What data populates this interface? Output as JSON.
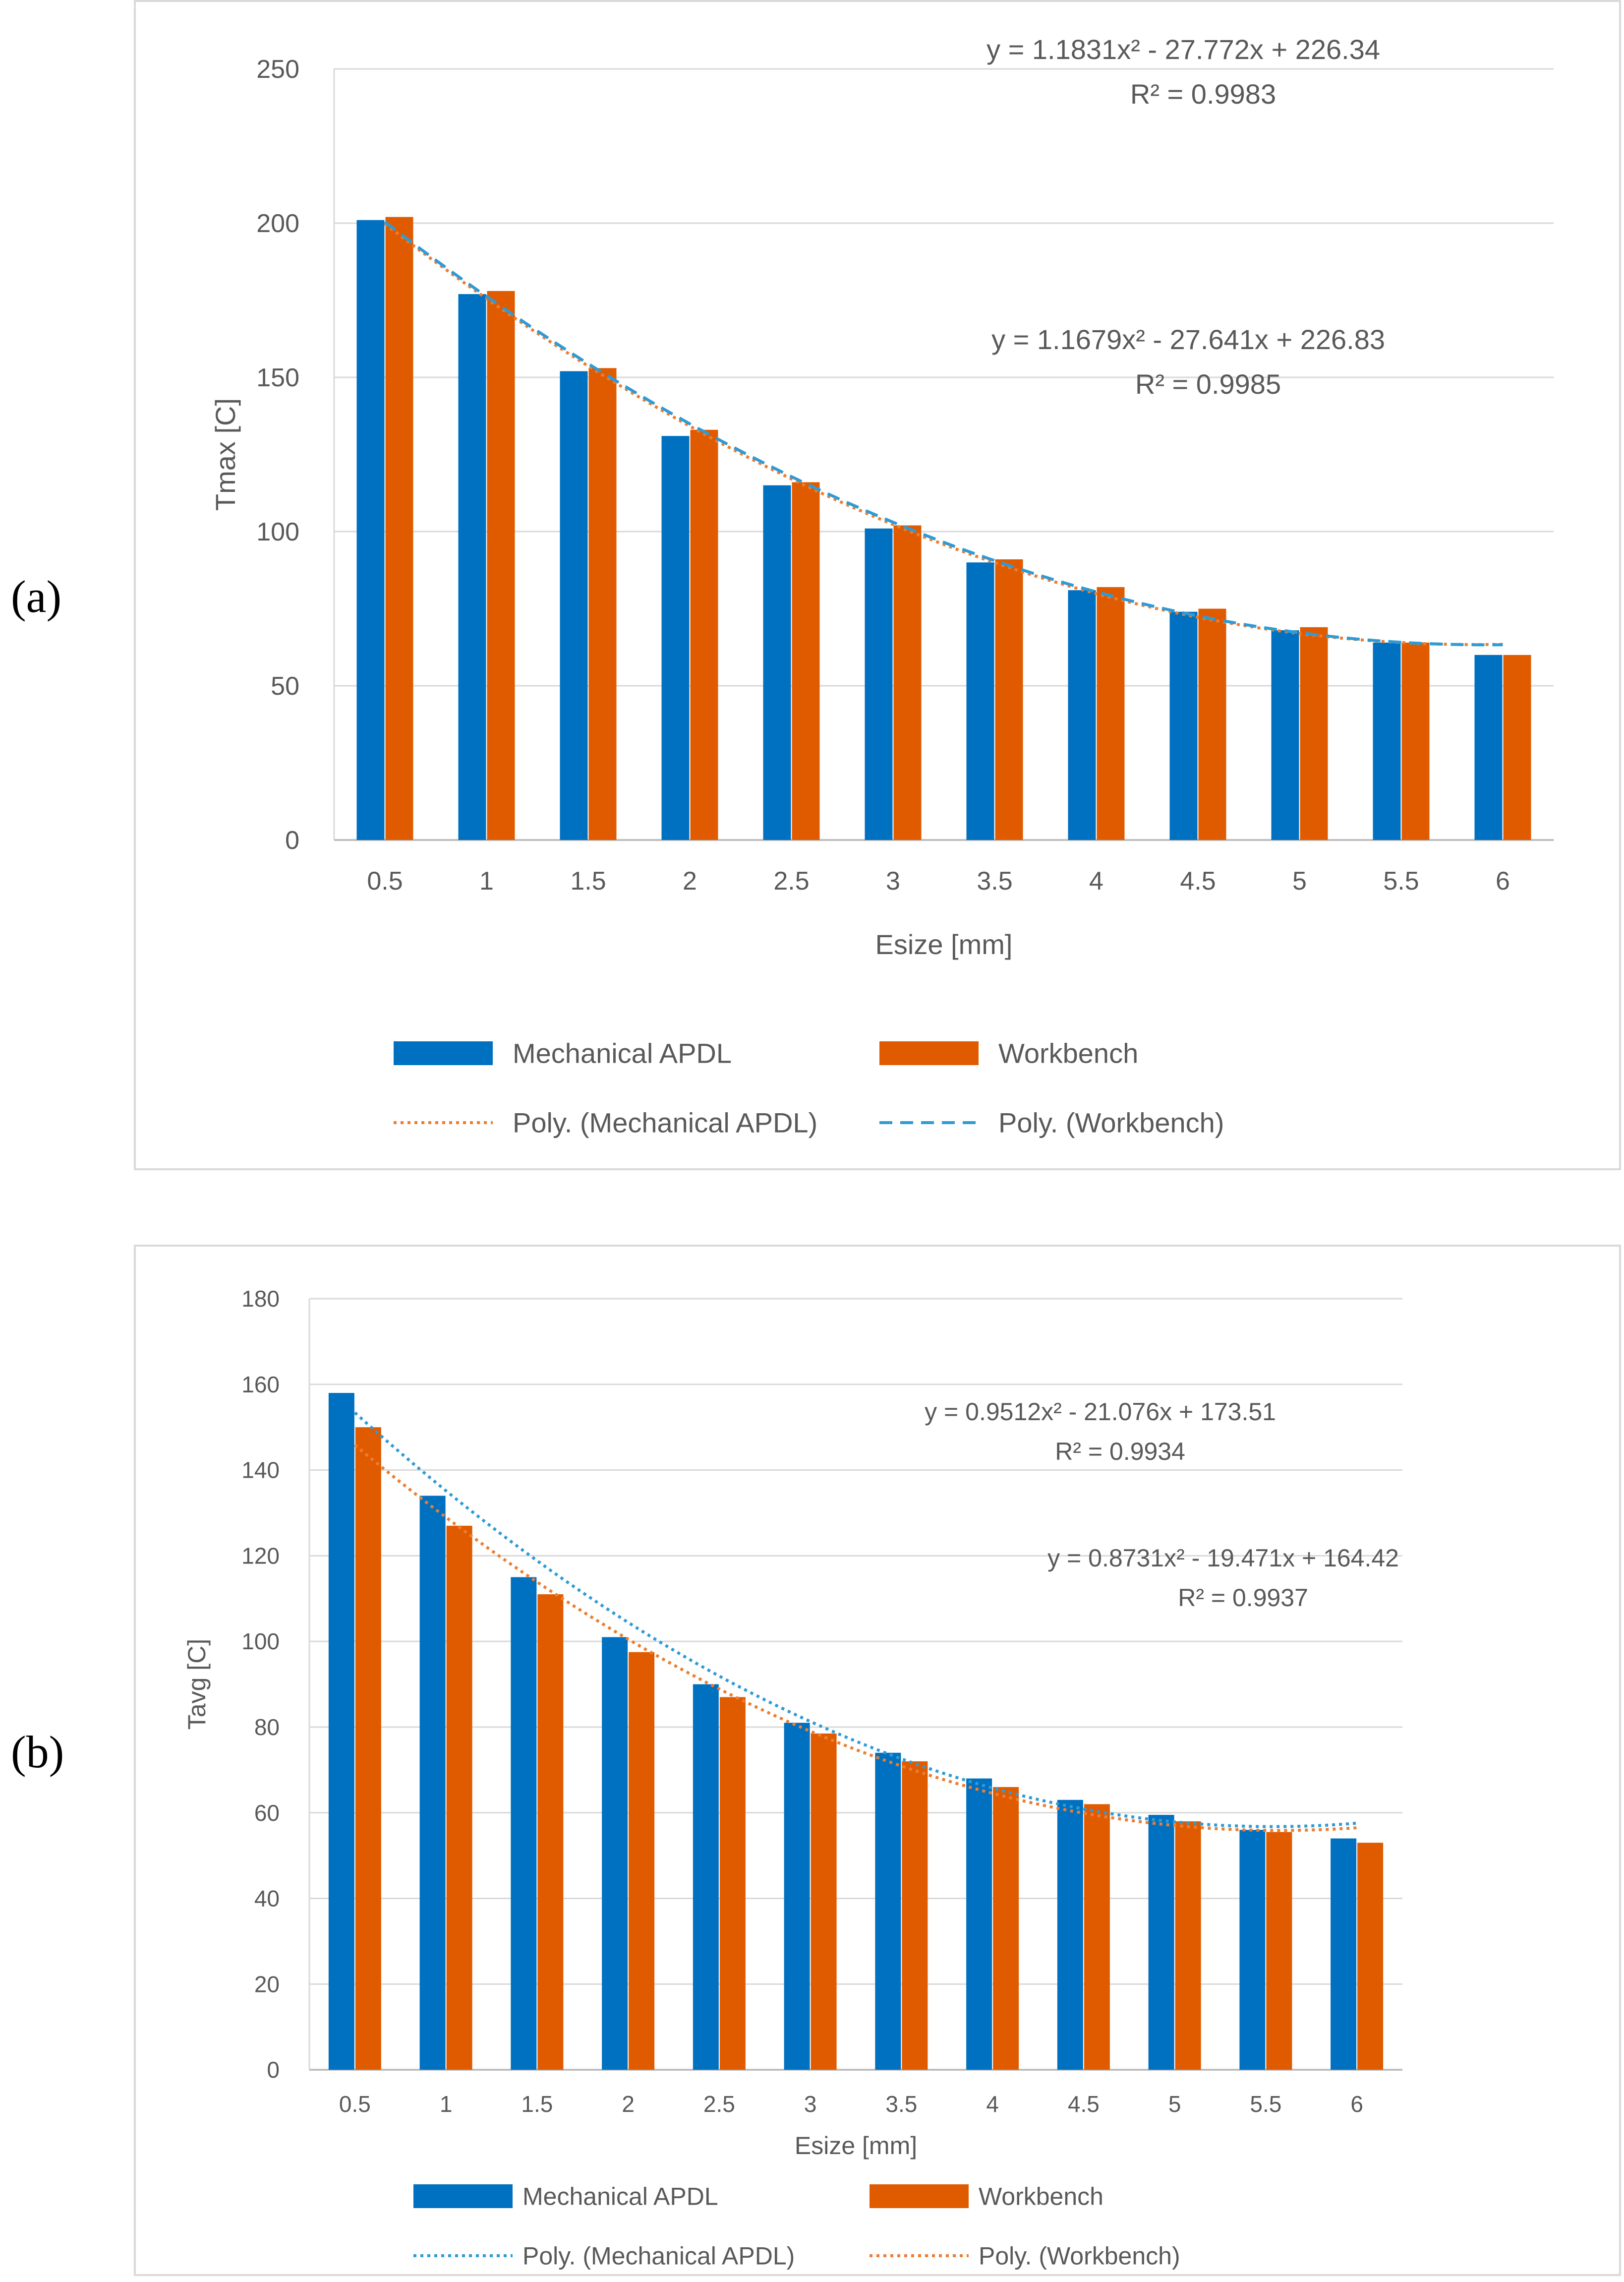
{
  "panels": [
    {
      "label": "(a)"
    },
    {
      "label": "(b)"
    }
  ],
  "colors": {
    "mechanical_apdl": "#0070c0",
    "workbench": "#e05b00",
    "grid": "#d9d9d9",
    "axis_text": "#595959"
  },
  "chart_data": [
    {
      "type": "bar",
      "categories": [
        "0.5",
        "1",
        "1.5",
        "2",
        "2.5",
        "3",
        "3.5",
        "4",
        "4.5",
        "5",
        "5.5",
        "6"
      ],
      "series": [
        {
          "name": "Mechanical APDL",
          "values": [
            201,
            177,
            152,
            131,
            115,
            101,
            90,
            81,
            74,
            68,
            64,
            60
          ]
        },
        {
          "name": "Workbench",
          "values": [
            202,
            178,
            153,
            133,
            116,
            102,
            91,
            82,
            75,
            69,
            64,
            60
          ]
        }
      ],
      "trendlines": [
        {
          "name": "Poly. (Mechanical APDL)",
          "coeffs": [
            226.34,
            -27.772,
            1.1831
          ],
          "color": "#ed7d31",
          "style": "dotted"
        },
        {
          "name": "Poly. (Workbench)",
          "coeffs": [
            226.83,
            -27.641,
            1.1679
          ],
          "color": "#2e9bd6",
          "style": "dashed"
        }
      ],
      "equations": [
        {
          "eq": "y = 1.1831x² - 27.772x + 226.34",
          "r2": "R² = 0.9983"
        },
        {
          "eq": "y = 1.1679x² - 27.641x + 226.83",
          "r2": "R² = 0.9985"
        }
      ],
      "xlabel": "Esize [mm]",
      "ylabel": "Tmax [C]",
      "ylim": [
        0,
        250
      ],
      "yticks": [
        "0",
        "50",
        "100",
        "150",
        "200",
        "250"
      ],
      "grid": true,
      "legend": {
        "bars": [
          "Mechanical APDL",
          "Workbench"
        ],
        "lines": [
          "Poly. (Mechanical APDL)",
          "Poly. (Workbench)"
        ],
        "position": "bottom"
      }
    },
    {
      "type": "bar",
      "categories": [
        "0.5",
        "1",
        "1.5",
        "2",
        "2.5",
        "3",
        "3.5",
        "4",
        "4.5",
        "5",
        "5.5",
        "6"
      ],
      "series": [
        {
          "name": "Mechanical APDL",
          "values": [
            158,
            134,
            115,
            101,
            90,
            81,
            74,
            68,
            63,
            59.5,
            56,
            54
          ]
        },
        {
          "name": "Workbench",
          "values": [
            150,
            127,
            111,
            97.5,
            87,
            78.5,
            72,
            66,
            62,
            58,
            55.5,
            53
          ]
        }
      ],
      "trendlines": [
        {
          "name": "Poly. (Mechanical APDL)",
          "coeffs": [
            173.51,
            -21.076,
            0.9512
          ],
          "color": "#2e9bd6",
          "style": "dotted"
        },
        {
          "name": "Poly. (Workbench)",
          "coeffs": [
            164.42,
            -19.471,
            0.8731
          ],
          "color": "#ed7d31",
          "style": "dotted"
        }
      ],
      "equations": [
        {
          "eq": "y = 0.9512x² - 21.076x + 173.51",
          "r2": "R² = 0.9934"
        },
        {
          "eq": "y = 0.8731x² - 19.471x + 164.42",
          "r2": "R² = 0.9937"
        }
      ],
      "xlabel": "Esize [mm]",
      "ylabel": "Tavg [C]",
      "ylim": [
        0,
        180
      ],
      "yticks": [
        "0",
        "20",
        "40",
        "60",
        "80",
        "100",
        "120",
        "140",
        "160",
        "180"
      ],
      "grid": true,
      "legend": {
        "bars": [
          "Mechanical APDL",
          "Workbench"
        ],
        "lines": [
          "Poly. (Mechanical APDL)",
          "Poly. (Workbench)"
        ],
        "position": "bottom"
      }
    }
  ]
}
